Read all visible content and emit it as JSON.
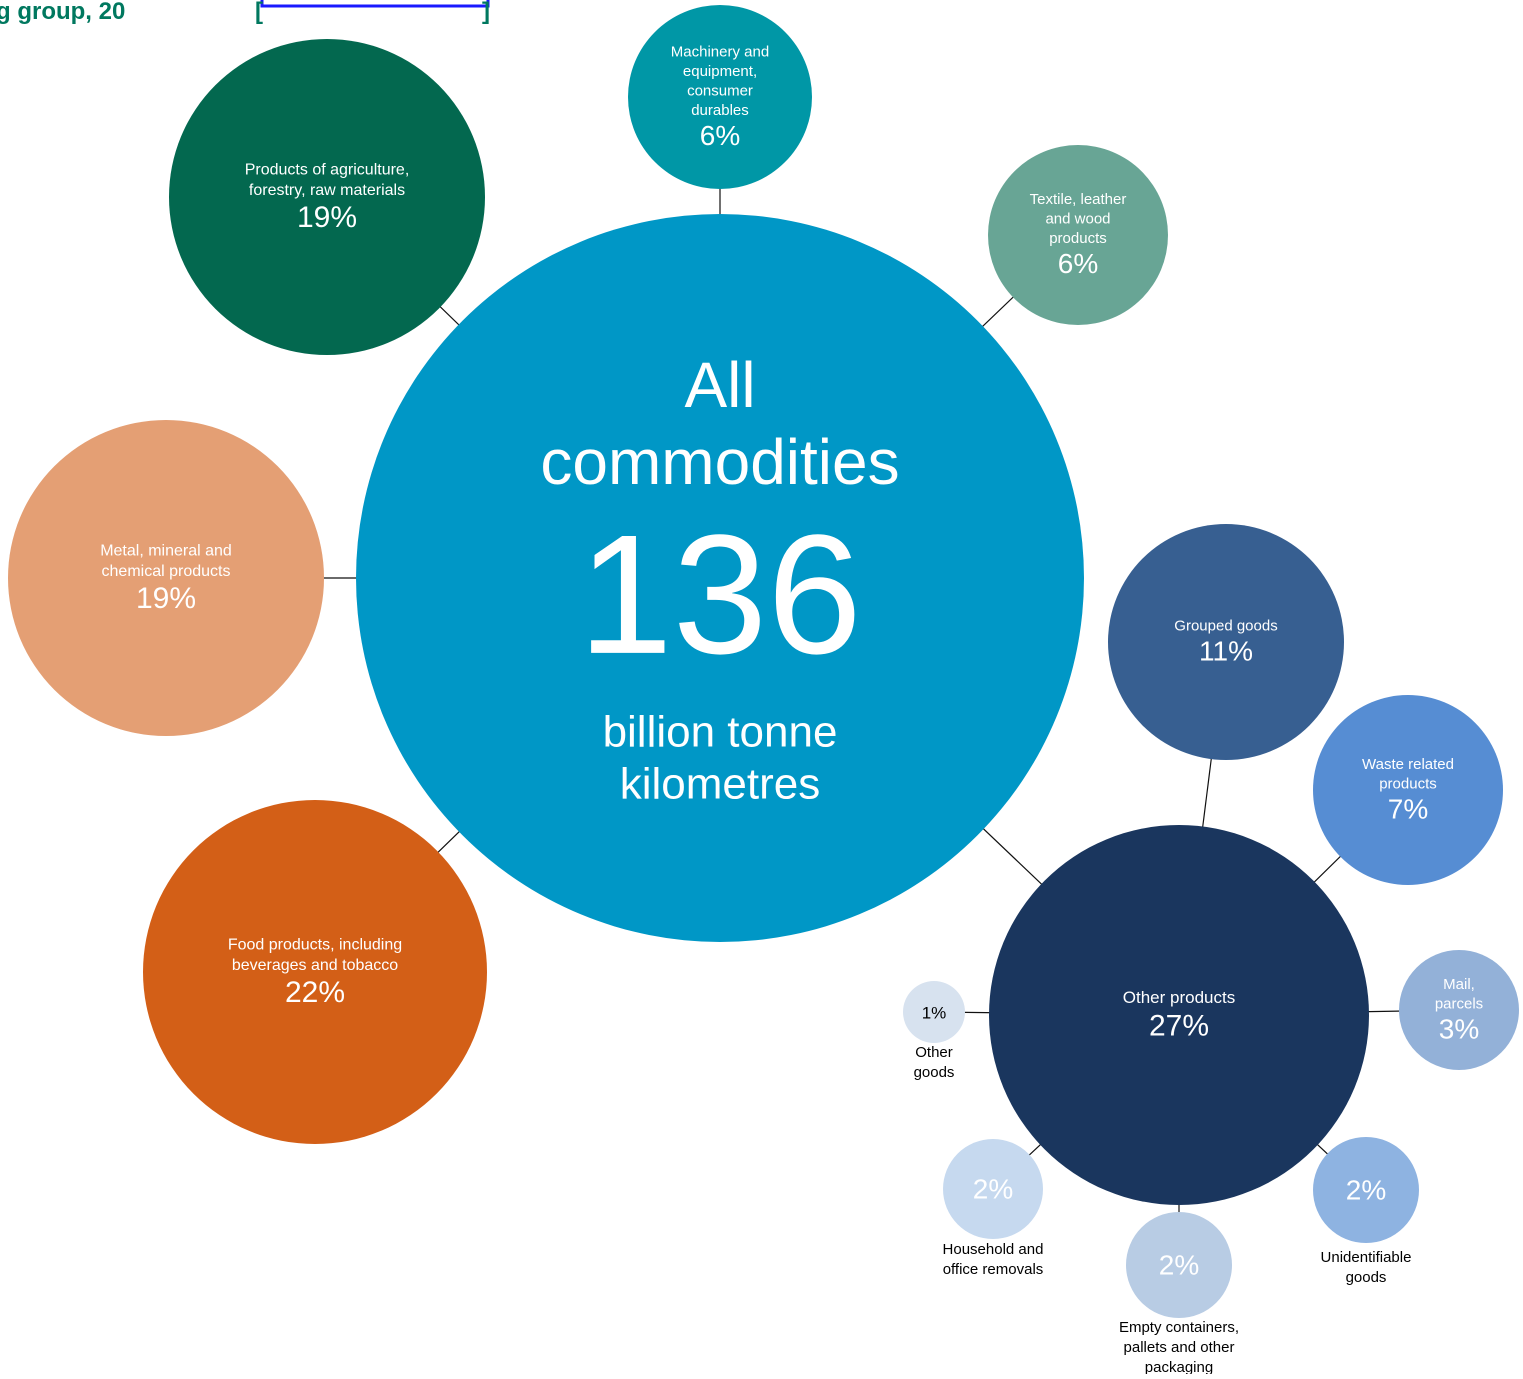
{
  "header": {
    "title": "g group, 20"
  },
  "center": {
    "title_lines": [
      "All",
      "commodities"
    ],
    "value": "136",
    "unit_lines": [
      "billion tonne",
      "kilometres"
    ]
  },
  "nodes": [
    {
      "label": [
        "Products of agriculture,",
        "forestry, raw materials"
      ],
      "value": "19%"
    },
    {
      "label": [
        "Machinery and",
        "equipment,",
        "consumer",
        "durables"
      ],
      "value": "6%"
    },
    {
      "label": [
        "Textile, leather",
        "and wood",
        "products"
      ],
      "value": "6%"
    },
    {
      "label": [
        "Metal, mineral and",
        "chemical products"
      ],
      "value": "19%"
    },
    {
      "label": [
        "Food products, including",
        "beverages and tobacco"
      ],
      "value": "22%"
    },
    {
      "label": [
        "Other products"
      ],
      "value": "27%"
    },
    {
      "label": [
        "Grouped goods"
      ],
      "value": "11%"
    },
    {
      "label": [
        "Waste related",
        "products"
      ],
      "value": "7%"
    },
    {
      "label": [
        "Mail,",
        "parcels"
      ],
      "value": "3%"
    },
    {
      "label": [
        "Unidentifiable",
        "goods"
      ],
      "value": "2%"
    },
    {
      "label": [
        "Empty containers,",
        "pallets and other",
        "packaging"
      ],
      "value": "2%"
    },
    {
      "label": [
        "Household and",
        "office removals"
      ],
      "value": "2%"
    },
    {
      "label": [
        "Other",
        "goods"
      ],
      "value": "1%"
    }
  ]
}
